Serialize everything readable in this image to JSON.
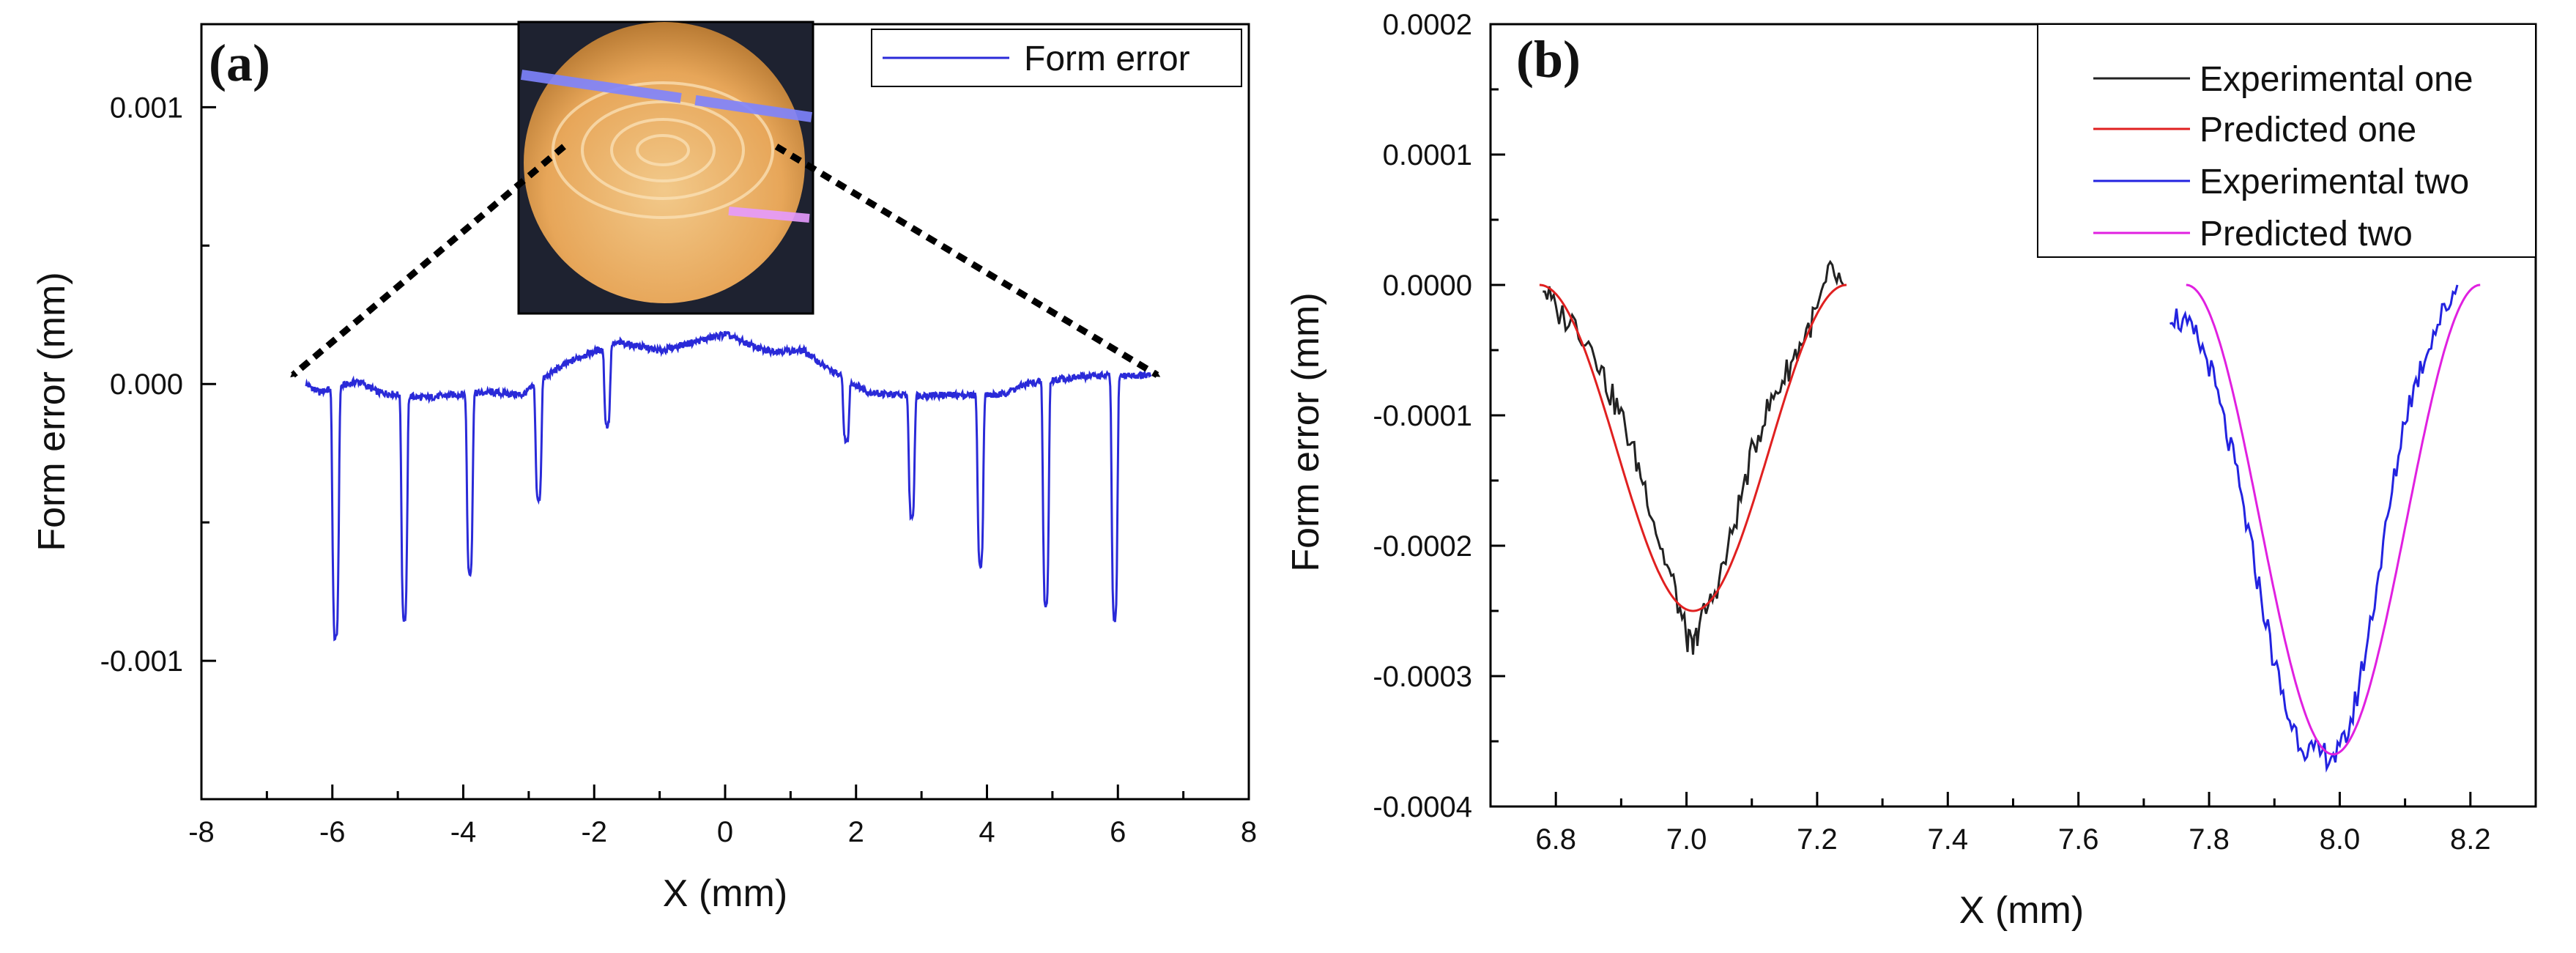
{
  "chart_data": [
    {
      "type": "line",
      "panel_label": "(a)",
      "xlabel": "X (mm)",
      "ylabel": "Form error (mm)",
      "xlim": [
        -8,
        8
      ],
      "ylim": [
        -0.0015,
        0.0013
      ],
      "xticks": [
        -8,
        -6,
        -4,
        -2,
        0,
        2,
        4,
        6,
        8
      ],
      "xtick_labels": [
        "-8",
        "-6",
        "-4",
        "-2",
        "0",
        "2",
        "4",
        "6",
        "8"
      ],
      "yticks": [
        0.001,
        0.0,
        -0.001
      ],
      "ytick_labels": [
        "0.001",
        "0.000",
        "-0.001"
      ],
      "legend": {
        "position": "top-right",
        "entries": [
          {
            "name": "Form error",
            "color": "#2a2ad8"
          }
        ]
      },
      "inset": {
        "description_label": "photo of machined lens surface",
        "position": "top-center"
      },
      "series": [
        {
          "name": "Form error",
          "color": "#2a2ad8",
          "baseline": [
            [
              -6.4,
              0.0
            ],
            [
              -6.2,
              -3e-05
            ],
            [
              -5.6,
              1e-05
            ],
            [
              -5.3,
              -3e-05
            ],
            [
              -4.6,
              -5e-05
            ],
            [
              -4.2,
              -4e-05
            ],
            [
              -3.6,
              -3e-05
            ],
            [
              -3.1,
              -4e-05
            ],
            [
              -2.6,
              5e-05
            ],
            [
              -2.2,
              0.0001
            ],
            [
              -1.6,
              0.00015
            ],
            [
              -1.0,
              0.00012
            ],
            [
              -0.5,
              0.00015
            ],
            [
              0.0,
              0.00018
            ],
            [
              0.6,
              0.00012
            ],
            [
              1.2,
              0.00012
            ],
            [
              1.6,
              5e-05
            ],
            [
              2.2,
              -3e-05
            ],
            [
              2.6,
              -4e-05
            ],
            [
              3.2,
              -4e-05
            ],
            [
              3.6,
              -4e-05
            ],
            [
              4.2,
              -4e-05
            ],
            [
              4.6,
              0.0
            ],
            [
              5.2,
              2e-05
            ],
            [
              5.6,
              3e-05
            ],
            [
              6.2,
              3e-05
            ],
            [
              6.5,
              3e-05
            ]
          ],
          "dips": [
            {
              "x": -5.95,
              "depth": -0.00092,
              "width": 0.12
            },
            {
              "x": -4.9,
              "depth": -0.00085,
              "width": 0.11
            },
            {
              "x": -3.9,
              "depth": -0.00068,
              "width": 0.11
            },
            {
              "x": -2.85,
              "depth": -0.00042,
              "width": 0.11
            },
            {
              "x": -1.8,
              "depth": -0.00015,
              "width": 0.11
            },
            {
              "x": 1.85,
              "depth": -0.00021,
              "width": 0.11
            },
            {
              "x": 2.85,
              "depth": -0.00048,
              "width": 0.11
            },
            {
              "x": 3.9,
              "depth": -0.00065,
              "width": 0.11
            },
            {
              "x": 4.9,
              "depth": -0.0008,
              "width": 0.11
            },
            {
              "x": 5.95,
              "depth": -0.00085,
              "width": 0.11
            }
          ]
        }
      ]
    },
    {
      "type": "line",
      "panel_label": "(b)",
      "xlabel": "X (mm)",
      "ylabel": "Form error (mm)",
      "xlim": [
        6.7,
        8.3
      ],
      "ylim": [
        -0.0004,
        0.0002
      ],
      "xticks": [
        6.8,
        7.0,
        7.2,
        7.4,
        7.6,
        7.8,
        8.0,
        8.2
      ],
      "xtick_labels": [
        "6.8",
        "7.0",
        "7.2",
        "7.4",
        "7.6",
        "7.8",
        "8.0",
        "8.2"
      ],
      "yticks": [
        0.0002,
        0.0001,
        0.0,
        -0.0001,
        -0.0002,
        -0.0003,
        -0.0004
      ],
      "ytick_labels": [
        "0.0002",
        "0.0001",
        "0.0000",
        "-0.0001",
        "-0.0002",
        "-0.0003",
        "-0.0004"
      ],
      "legend": {
        "position": "top-right",
        "entries": [
          {
            "name": "Experimental one",
            "color": "#222222"
          },
          {
            "name": "Predicted one",
            "color": "#e02020"
          },
          {
            "name": "Experimental two",
            "color": "#2323e0"
          },
          {
            "name": "Predicted two",
            "color": "#e020e0"
          }
        ]
      },
      "series": [
        {
          "name": "Experimental one",
          "color": "#222222",
          "points": [
            [
              6.78,
              0.0
            ],
            [
              6.8,
              -2e-05
            ],
            [
              6.83,
              -3e-05
            ],
            [
              6.86,
              -5e-05
            ],
            [
              6.88,
              -8e-05
            ],
            [
              6.9,
              -0.0001
            ],
            [
              6.92,
              -0.00013
            ],
            [
              6.94,
              -0.00016
            ],
            [
              6.96,
              -0.0002
            ],
            [
              6.98,
              -0.00023
            ],
            [
              7.0,
              -0.00027
            ],
            [
              7.01,
              -0.00028
            ],
            [
              7.02,
              -0.00026
            ],
            [
              7.04,
              -0.00024
            ],
            [
              7.06,
              -0.00021
            ],
            [
              7.08,
              -0.00017
            ],
            [
              7.1,
              -0.00013
            ],
            [
              7.12,
              -0.0001
            ],
            [
              7.14,
              -8e-05
            ],
            [
              7.16,
              -6e-05
            ],
            [
              7.18,
              -4e-05
            ],
            [
              7.2,
              -2e-05
            ],
            [
              7.22,
              1e-05
            ],
            [
              7.24,
              0.0
            ]
          ]
        },
        {
          "name": "Predicted one",
          "color": "#e02020",
          "center": 7.01,
          "halfwidth": 0.235,
          "depth": -0.00025
        },
        {
          "name": "Experimental two",
          "color": "#2323e0",
          "points": [
            [
              7.74,
              -2e-05
            ],
            [
              7.76,
              -3e-05
            ],
            [
              7.78,
              -4e-05
            ],
            [
              7.8,
              -6e-05
            ],
            [
              7.82,
              -0.0001
            ],
            [
              7.84,
              -0.00014
            ],
            [
              7.86,
              -0.00019
            ],
            [
              7.88,
              -0.00024
            ],
            [
              7.9,
              -0.00029
            ],
            [
              7.92,
              -0.00033
            ],
            [
              7.94,
              -0.00035
            ],
            [
              7.96,
              -0.00036
            ],
            [
              7.98,
              -0.00036
            ],
            [
              8.0,
              -0.00036
            ],
            [
              8.02,
              -0.00033
            ],
            [
              8.04,
              -0.00028
            ],
            [
              8.06,
              -0.00022
            ],
            [
              8.08,
              -0.00016
            ],
            [
              8.1,
              -0.0001
            ],
            [
              8.12,
              -7e-05
            ],
            [
              8.14,
              -4e-05
            ],
            [
              8.16,
              -2e-05
            ],
            [
              8.18,
              0.0
            ]
          ]
        },
        {
          "name": "Predicted two",
          "color": "#e020e0",
          "center": 7.99,
          "halfwidth": 0.225,
          "depth": -0.00036
        }
      ]
    }
  ]
}
